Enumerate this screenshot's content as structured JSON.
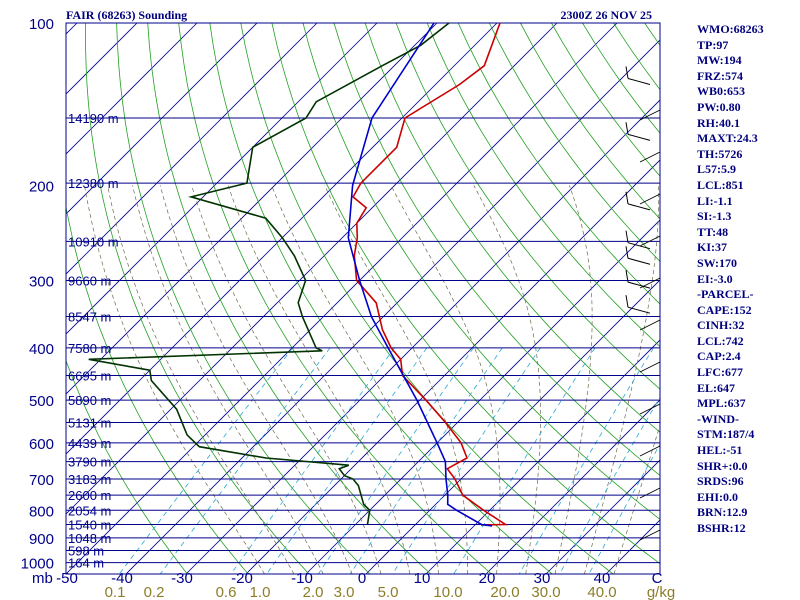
{
  "header": {
    "station": "FAIR (68263) Sounding",
    "valid_time": "2300Z 26 NOV 25"
  },
  "chart_data": {
    "type": "skew-t log-p sounding",
    "units": {
      "pressure": "mb",
      "temperature": "C",
      "mixing_ratio": "g/kg"
    },
    "pressure_ticks": [
      100,
      200,
      300,
      400,
      500,
      600,
      700,
      800,
      900,
      1000
    ],
    "pressure_tick_labels": [
      "100",
      "200",
      "300",
      "400",
      "500",
      "600",
      "700",
      "800",
      "900",
      "1000"
    ],
    "pressure_axis_unit": "mb",
    "temperature_ticks": [
      -50,
      -40,
      -30,
      -20,
      -10,
      0,
      10,
      20,
      30,
      40,
      50
    ],
    "temperature_tick_labels": [
      "-50",
      "-40",
      "-30",
      "-20",
      "-10",
      "0",
      "10",
      "20",
      "30",
      "40",
      "C"
    ],
    "mixing_ratio_labels": [
      "0.1",
      "0.2",
      "0.6",
      "1.0",
      "2.0",
      "3.0",
      "5.0",
      "10.0",
      "20.0",
      "30.0",
      "40.0",
      "g/kg"
    ],
    "mixing_ratio_values": [
      0.1,
      0.2,
      0.6,
      1.0,
      2.0,
      3.0,
      5.0,
      10.0,
      20.0,
      30.0,
      40.0
    ],
    "heights": [
      {
        "p": 150,
        "label": "14190 m"
      },
      {
        "p": 198,
        "label": "12380 m"
      },
      {
        "p": 254,
        "label": "10910 m"
      },
      {
        "p": 300,
        "label": "9660 m"
      },
      {
        "p": 350,
        "label": "8547 m"
      },
      {
        "p": 400,
        "label": "7580 m"
      },
      {
        "p": 450,
        "label": "6695 m"
      },
      {
        "p": 500,
        "label": "5890 m"
      },
      {
        "p": 550,
        "label": "5131 m"
      },
      {
        "p": 600,
        "label": "4439 m"
      },
      {
        "p": 650,
        "label": "3790 m"
      },
      {
        "p": 700,
        "label": "3183 m"
      },
      {
        "p": 750,
        "label": "2600 m"
      },
      {
        "p": 800,
        "label": "2054 m"
      },
      {
        "p": 850,
        "label": "1540 m"
      },
      {
        "p": 900,
        "label": "1048 m"
      },
      {
        "p": 950,
        "label": "598 m"
      },
      {
        "p": 1000,
        "label": "164 m"
      }
    ],
    "series": [
      {
        "role": "temperature",
        "color": "#cc0000",
        "points": [
          [
            100,
            -69.5
          ],
          [
            120,
            -65.0
          ],
          [
            130,
            -66.0
          ],
          [
            150,
            -69.5
          ],
          [
            170,
            -66.0
          ],
          [
            198,
            -66.0
          ],
          [
            210,
            -65.0
          ],
          [
            220,
            -61.0
          ],
          [
            235,
            -60.0
          ],
          [
            250,
            -57.5
          ],
          [
            270,
            -55.0
          ],
          [
            300,
            -50.5
          ],
          [
            330,
            -43.5
          ],
          [
            370,
            -38.0
          ],
          [
            400,
            -33.5
          ],
          [
            420,
            -30.0
          ],
          [
            450,
            -27.0
          ],
          [
            500,
            -19.0
          ],
          [
            550,
            -12.0
          ],
          [
            600,
            -6.0
          ],
          [
            640,
            -2.5
          ],
          [
            670,
            -4.0
          ],
          [
            700,
            -1.0
          ],
          [
            750,
            3.0
          ],
          [
            800,
            9.0
          ],
          [
            850,
            15.0
          ],
          [
            852,
            11.0
          ]
        ]
      },
      {
        "role": "dewpoint",
        "color": "#003300",
        "points": [
          [
            100,
            -78.0
          ],
          [
            110,
            -79.0
          ],
          [
            120,
            -82.0
          ],
          [
            140,
            -87.0
          ],
          [
            150,
            -86.0
          ],
          [
            170,
            -90.0
          ],
          [
            198,
            -85.0
          ],
          [
            210,
            -92.0
          ],
          [
            230,
            -76.0
          ],
          [
            250,
            -70.0
          ],
          [
            270,
            -65.0
          ],
          [
            300,
            -59.0
          ],
          [
            330,
            -56.5
          ],
          [
            350,
            -53.5
          ],
          [
            400,
            -46.0
          ],
          [
            405,
            -44.5
          ],
          [
            420,
            -82.0
          ],
          [
            440,
            -70.0
          ],
          [
            460,
            -68.0
          ],
          [
            520,
            -59.0
          ],
          [
            580,
            -53.0
          ],
          [
            610,
            -49.0
          ],
          [
            640,
            -36.0
          ],
          [
            660,
            -21.0
          ],
          [
            670,
            -22.0
          ],
          [
            690,
            -20.0
          ],
          [
            700,
            -18.0
          ],
          [
            720,
            -16.0
          ],
          [
            780,
            -12.0
          ],
          [
            800,
            -10.0
          ],
          [
            850,
            -8.0
          ]
        ]
      },
      {
        "role": "parcel",
        "color": "#0000cc",
        "points": [
          [
            100,
            -80.5
          ],
          [
            150,
            -75.0
          ],
          [
            200,
            -67.0
          ],
          [
            250,
            -59.0
          ],
          [
            300,
            -50.0
          ],
          [
            350,
            -42.0
          ],
          [
            400,
            -34.0
          ],
          [
            500,
            -20.5
          ],
          [
            600,
            -10.0
          ],
          [
            650,
            -5.5
          ],
          [
            700,
            -2.5
          ],
          [
            750,
            0.5
          ],
          [
            780,
            2.0
          ],
          [
            800,
            4.5
          ],
          [
            850,
            11.0
          ],
          [
            855,
            13.0
          ]
        ]
      }
    ],
    "wind_barbs": [
      {
        "p": 130,
        "label": ""
      },
      {
        "p": 165,
        "label": ""
      },
      {
        "p": 222,
        "label": ""
      },
      {
        "p": 262,
        "label": ""
      },
      {
        "p": 280,
        "label": ""
      },
      {
        "p": 310,
        "label": ""
      },
      {
        "p": 345,
        "label": ""
      }
    ],
    "indices": [
      "WMO:68263",
      "TP:97",
      "MW:194",
      "FRZ:574",
      "WB0:653",
      "PW:0.80",
      "RH:40.1",
      "MAXT:24.3",
      "TH:5726",
      "L57:5.9",
      "LCL:851",
      "LI:-1.1",
      "SI:-1.3",
      "TT:48",
      "KI:37",
      "SW:170",
      "EI:-3.0",
      "-PARCEL-",
      "CAPE:152",
      "CINH:32",
      "LCL:742",
      "CAP:2.4",
      "LFC:677",
      "EL:647",
      "MPL:637",
      "-WIND-",
      "STM:187/4",
      "HEL:-51",
      "SHR+:0.0",
      "SRDS:96",
      "EHI:0.0",
      "BRN:12.9",
      "BSHR:12"
    ]
  }
}
